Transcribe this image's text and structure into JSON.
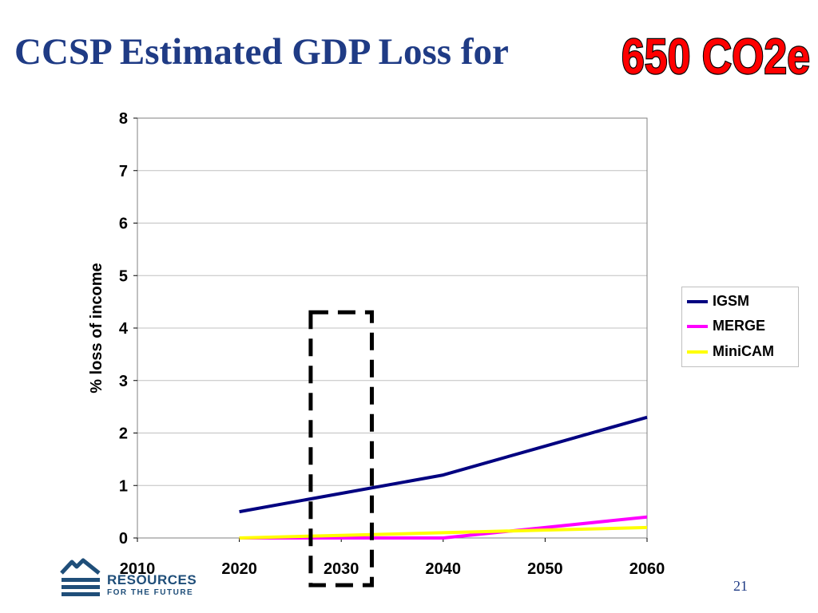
{
  "slide": {
    "title_main": "CCSP Estimated GDP Loss for",
    "title_highlight": "650 CO2e",
    "title_color": "#1f3b85",
    "highlight_fill": "#ff0000",
    "page_number": "21",
    "logo": {
      "line1": "RESOURCES",
      "line2": "FOR THE FUTURE",
      "color": "#1f4e79",
      "icon": "rff-logo-icon"
    }
  },
  "chart_data": {
    "type": "line",
    "title": "",
    "xlabel": "",
    "ylabel": "% loss of income",
    "xlim": [
      2010,
      2060
    ],
    "ylim": [
      0,
      8
    ],
    "x_ticks": [
      "2010",
      "2020",
      "2030",
      "2040",
      "2050",
      "2060"
    ],
    "y_ticks": [
      "0",
      "1",
      "2",
      "3",
      "4",
      "5",
      "6",
      "7",
      "8"
    ],
    "grid": "horizontal",
    "legend_position": "right",
    "series": [
      {
        "name": "IGSM",
        "color": "#000080",
        "x": [
          2020,
          2030,
          2040,
          2050,
          2060
        ],
        "values": [
          0.5,
          0.85,
          1.2,
          1.75,
          2.3
        ]
      },
      {
        "name": "MERGE",
        "color": "#ff00ff",
        "x": [
          2020,
          2030,
          2040,
          2050,
          2060
        ],
        "values": [
          0.0,
          0.0,
          0.0,
          0.2,
          0.4
        ]
      },
      {
        "name": "MiniCAM",
        "color": "#ffff00",
        "x": [
          2020,
          2030,
          2040,
          2050,
          2060
        ],
        "values": [
          0.0,
          0.05,
          0.1,
          0.15,
          0.2
        ]
      }
    ],
    "annotation": {
      "type": "dashed-box",
      "x_range": [
        2027,
        2033
      ],
      "y_range": [
        -0.9,
        4.3
      ]
    }
  }
}
